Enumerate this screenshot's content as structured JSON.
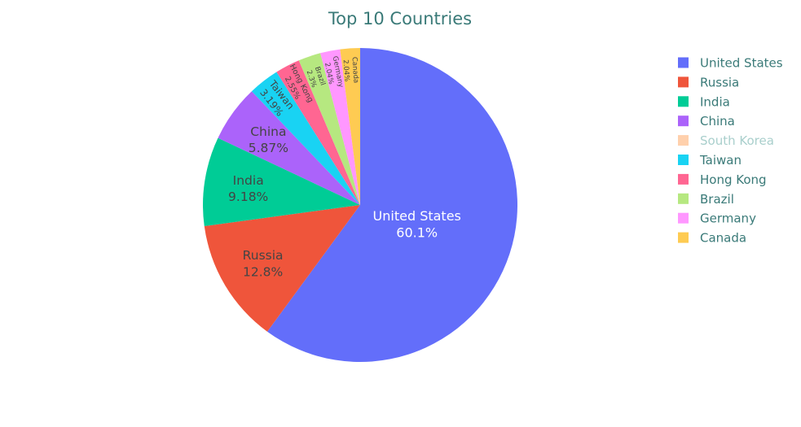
{
  "chart_data": {
    "type": "pie",
    "title": "Top 10 Countries",
    "labels": [
      "United States",
      "Russia",
      "India",
      "China",
      "South Korea",
      "Taiwan",
      "Hong Kong",
      "Brazil",
      "Germany",
      "Canada"
    ],
    "values": [
      60.1,
      12.8,
      9.18,
      5.87,
      0,
      3.19,
      2.55,
      2.3,
      2.04,
      2.04
    ],
    "value_text": [
      "60.1%",
      "12.8%",
      "9.18%",
      "5.87%",
      "",
      "3.19%",
      "2.55%",
      "2.3%",
      "2.04%",
      "2.04%"
    ],
    "colors": [
      "#636efa",
      "#ef553b",
      "#00cc96",
      "#ab63fa",
      "#ffa15a",
      "#19d3f3",
      "#ff6692",
      "#b6e880",
      "#ff97ff",
      "#fecb52"
    ],
    "hidden": [
      false,
      false,
      false,
      false,
      true,
      false,
      false,
      false,
      false,
      false
    ],
    "direction": "clockwise",
    "start": "top",
    "legend": "right"
  }
}
